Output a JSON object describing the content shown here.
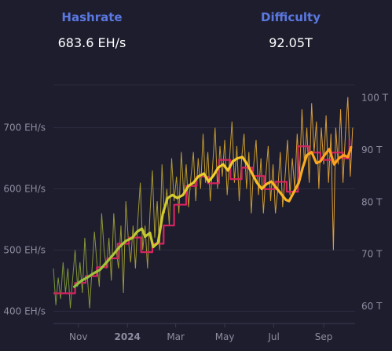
{
  "header": {
    "hashrate_label": "Hashrate",
    "hashrate_value": "683.6 EH/s",
    "difficulty_label": "Difficulty",
    "difficulty_value": "92.05T"
  },
  "chart_data": {
    "type": "line",
    "x_ticks": [
      {
        "label": "Nov",
        "date": "2023-11-01"
      },
      {
        "label": "2024",
        "date": "2024-01-01",
        "bold": true
      },
      {
        "label": "Mar",
        "date": "2024-03-01"
      },
      {
        "label": "May",
        "date": "2024-05-01"
      },
      {
        "label": "Jul",
        "date": "2024-07-01"
      },
      {
        "label": "Sep",
        "date": "2024-09-01"
      }
    ],
    "x_range": [
      "2023-10-01",
      "2024-10-10"
    ],
    "y_left": {
      "unit": "EH/s",
      "ticks": [
        "400 EH/s",
        "500 EH/s",
        "600 EH/s",
        "700 EH/s"
      ],
      "range": [
        380,
        770
      ]
    },
    "y_right": {
      "unit": "T",
      "ticks": [
        "60 T",
        "70 T",
        "80 T",
        "90 T",
        "100 T"
      ],
      "range": [
        56.7,
        102.5
      ]
    },
    "grid": true,
    "series": [
      {
        "axis": "left",
        "style": "daily_hashrate",
        "colors": [
          "#7a9a3a",
          "#c9a02a",
          "#e8a43a"
        ],
        "points": [
          [
            "2023-10-01",
            470
          ],
          [
            "2023-10-04",
            410
          ],
          [
            "2023-10-07",
            455
          ],
          [
            "2023-10-10",
            420
          ],
          [
            "2023-10-13",
            480
          ],
          [
            "2023-10-16",
            430
          ],
          [
            "2023-10-19",
            470
          ],
          [
            "2023-10-22",
            405
          ],
          [
            "2023-10-25",
            455
          ],
          [
            "2023-10-28",
            500
          ],
          [
            "2023-10-31",
            440
          ],
          [
            "2023-11-03",
            480
          ],
          [
            "2023-11-06",
            430
          ],
          [
            "2023-11-09",
            520
          ],
          [
            "2023-11-12",
            460
          ],
          [
            "2023-11-15",
            405
          ],
          [
            "2023-11-18",
            470
          ],
          [
            "2023-11-21",
            530
          ],
          [
            "2023-11-24",
            480
          ],
          [
            "2023-11-27",
            440
          ],
          [
            "2023-11-30",
            560
          ],
          [
            "2023-12-03",
            500
          ],
          [
            "2023-12-06",
            470
          ],
          [
            "2023-12-09",
            520
          ],
          [
            "2023-12-12",
            450
          ],
          [
            "2023-12-15",
            560
          ],
          [
            "2023-12-18",
            500
          ],
          [
            "2023-12-21",
            470
          ],
          [
            "2023-12-24",
            540
          ],
          [
            "2023-12-27",
            430
          ],
          [
            "2023-12-30",
            580
          ],
          [
            "2024-01-02",
            520
          ],
          [
            "2024-01-05",
            480
          ],
          [
            "2024-01-08",
            540
          ],
          [
            "2024-01-11",
            470
          ],
          [
            "2024-01-14",
            550
          ],
          [
            "2024-01-17",
            610
          ],
          [
            "2024-01-20",
            500
          ],
          [
            "2024-01-23",
            540
          ],
          [
            "2024-01-26",
            470
          ],
          [
            "2024-01-29",
            560
          ],
          [
            "2024-02-01",
            630
          ],
          [
            "2024-02-04",
            520
          ],
          [
            "2024-02-07",
            580
          ],
          [
            "2024-02-10",
            500
          ],
          [
            "2024-02-13",
            640
          ],
          [
            "2024-02-16",
            560
          ],
          [
            "2024-02-19",
            600
          ],
          [
            "2024-02-22",
            540
          ],
          [
            "2024-02-25",
            650
          ],
          [
            "2024-02-28",
            580
          ],
          [
            "2024-03-02",
            620
          ],
          [
            "2024-03-05",
            560
          ],
          [
            "2024-03-08",
            660
          ],
          [
            "2024-03-11",
            590
          ],
          [
            "2024-03-14",
            640
          ],
          [
            "2024-03-17",
            570
          ],
          [
            "2024-03-20",
            620
          ],
          [
            "2024-03-23",
            660
          ],
          [
            "2024-03-26",
            580
          ],
          [
            "2024-03-29",
            650
          ],
          [
            "2024-04-01",
            600
          ],
          [
            "2024-04-04",
            690
          ],
          [
            "2024-04-07",
            610
          ],
          [
            "2024-04-10",
            660
          ],
          [
            "2024-04-13",
            580
          ],
          [
            "2024-04-16",
            640
          ],
          [
            "2024-04-19",
            700
          ],
          [
            "2024-04-22",
            600
          ],
          [
            "2024-04-25",
            670
          ],
          [
            "2024-04-28",
            620
          ],
          [
            "2024-05-01",
            680
          ],
          [
            "2024-05-04",
            590
          ],
          [
            "2024-05-07",
            650
          ],
          [
            "2024-05-10",
            710
          ],
          [
            "2024-05-13",
            610
          ],
          [
            "2024-05-16",
            670
          ],
          [
            "2024-05-19",
            580
          ],
          [
            "2024-05-22",
            650
          ],
          [
            "2024-05-25",
            690
          ],
          [
            "2024-05-28",
            600
          ],
          [
            "2024-05-31",
            660
          ],
          [
            "2024-06-03",
            560
          ],
          [
            "2024-06-06",
            640
          ],
          [
            "2024-06-09",
            680
          ],
          [
            "2024-06-12",
            590
          ],
          [
            "2024-06-15",
            650
          ],
          [
            "2024-06-18",
            560
          ],
          [
            "2024-06-21",
            620
          ],
          [
            "2024-06-24",
            670
          ],
          [
            "2024-06-27",
            580
          ],
          [
            "2024-06-30",
            640
          ],
          [
            "2024-07-03",
            560
          ],
          [
            "2024-07-06",
            600
          ],
          [
            "2024-07-09",
            660
          ],
          [
            "2024-07-12",
            570
          ],
          [
            "2024-07-15",
            620
          ],
          [
            "2024-07-18",
            680
          ],
          [
            "2024-07-21",
            590
          ],
          [
            "2024-07-24",
            650
          ],
          [
            "2024-07-27",
            600
          ],
          [
            "2024-07-30",
            690
          ],
          [
            "2024-08-02",
            620
          ],
          [
            "2024-08-05",
            730
          ],
          [
            "2024-08-08",
            640
          ],
          [
            "2024-08-11",
            700
          ],
          [
            "2024-08-14",
            610
          ],
          [
            "2024-08-17",
            740
          ],
          [
            "2024-08-20",
            660
          ],
          [
            "2024-08-23",
            710
          ],
          [
            "2024-08-26",
            600
          ],
          [
            "2024-08-29",
            700
          ],
          [
            "2024-09-01",
            640
          ],
          [
            "2024-09-04",
            720
          ],
          [
            "2024-09-07",
            610
          ],
          [
            "2024-09-10",
            690
          ],
          [
            "2024-09-13",
            500
          ],
          [
            "2024-09-16",
            700
          ],
          [
            "2024-09-19",
            640
          ],
          [
            "2024-09-22",
            730
          ],
          [
            "2024-09-25",
            610
          ],
          [
            "2024-09-28",
            690
          ],
          [
            "2024-10-01",
            750
          ],
          [
            "2024-10-04",
            620
          ],
          [
            "2024-10-07",
            700
          ]
        ]
      },
      {
        "axis": "left",
        "style": "average_hashrate",
        "colors": [
          "#8fc23c",
          "#f2d02a",
          "#ff9a1a"
        ],
        "points": [
          [
            "2023-10-27",
            440
          ],
          [
            "2023-11-05",
            450
          ],
          [
            "2023-11-12",
            455
          ],
          [
            "2023-11-20",
            462
          ],
          [
            "2023-11-28",
            468
          ],
          [
            "2023-12-06",
            480
          ],
          [
            "2023-12-14",
            492
          ],
          [
            "2023-12-22",
            505
          ],
          [
            "2023-12-30",
            515
          ],
          [
            "2024-01-07",
            520
          ],
          [
            "2024-01-13",
            530
          ],
          [
            "2024-01-19",
            535
          ],
          [
            "2024-01-23",
            522
          ],
          [
            "2024-01-29",
            528
          ],
          [
            "2024-02-02",
            505
          ],
          [
            "2024-02-08",
            512
          ],
          [
            "2024-02-14",
            560
          ],
          [
            "2024-02-20",
            585
          ],
          [
            "2024-02-26",
            590
          ],
          [
            "2024-03-03",
            585
          ],
          [
            "2024-03-10",
            590
          ],
          [
            "2024-03-17",
            605
          ],
          [
            "2024-03-23",
            610
          ],
          [
            "2024-03-29",
            620
          ],
          [
            "2024-04-05",
            625
          ],
          [
            "2024-04-11",
            612
          ],
          [
            "2024-04-17",
            622
          ],
          [
            "2024-04-23",
            635
          ],
          [
            "2024-04-29",
            640
          ],
          [
            "2024-05-05",
            630
          ],
          [
            "2024-05-11",
            645
          ],
          [
            "2024-05-17",
            650
          ],
          [
            "2024-05-23",
            652
          ],
          [
            "2024-05-29",
            640
          ],
          [
            "2024-06-04",
            625
          ],
          [
            "2024-06-10",
            610
          ],
          [
            "2024-06-16",
            600
          ],
          [
            "2024-06-22",
            608
          ],
          [
            "2024-06-28",
            612
          ],
          [
            "2024-07-04",
            602
          ],
          [
            "2024-07-10",
            592
          ],
          [
            "2024-07-16",
            582
          ],
          [
            "2024-07-20",
            580
          ],
          [
            "2024-07-26",
            595
          ],
          [
            "2024-08-01",
            610
          ],
          [
            "2024-08-06",
            635
          ],
          [
            "2024-08-11",
            655
          ],
          [
            "2024-08-17",
            660
          ],
          [
            "2024-08-23",
            642
          ],
          [
            "2024-08-28",
            645
          ],
          [
            "2024-09-02",
            655
          ],
          [
            "2024-09-08",
            665
          ],
          [
            "2024-09-14",
            640
          ],
          [
            "2024-09-20",
            650
          ],
          [
            "2024-09-26",
            655
          ],
          [
            "2024-10-01",
            652
          ],
          [
            "2024-10-05",
            668
          ]
        ]
      },
      {
        "axis": "right",
        "style": "difficulty",
        "color": "#d6245f",
        "points": [
          [
            "2023-10-01",
            62.5
          ],
          [
            "2023-10-28",
            62.5
          ],
          [
            "2023-10-28",
            64.5
          ],
          [
            "2023-11-10",
            64.5
          ],
          [
            "2023-11-10",
            65.8
          ],
          [
            "2023-11-24",
            65.8
          ],
          [
            "2023-11-24",
            67.5
          ],
          [
            "2023-12-07",
            67.5
          ],
          [
            "2023-12-07",
            69.2
          ],
          [
            "2023-12-20",
            69.2
          ],
          [
            "2023-12-20",
            72.0
          ],
          [
            "2024-01-03",
            72.0
          ],
          [
            "2024-01-03",
            73.2
          ],
          [
            "2024-01-18",
            73.2
          ],
          [
            "2024-01-18",
            70.4
          ],
          [
            "2024-02-01",
            70.4
          ],
          [
            "2024-02-01",
            72.0
          ],
          [
            "2024-02-15",
            72.0
          ],
          [
            "2024-02-15",
            75.5
          ],
          [
            "2024-02-28",
            75.5
          ],
          [
            "2024-02-28",
            79.5
          ],
          [
            "2024-03-14",
            79.5
          ],
          [
            "2024-03-14",
            83.1
          ],
          [
            "2024-03-27",
            83.1
          ],
          [
            "2024-03-27",
            84.9
          ],
          [
            "2024-04-10",
            84.9
          ],
          [
            "2024-04-10",
            83.6
          ],
          [
            "2024-04-24",
            83.6
          ],
          [
            "2024-04-24",
            88.1
          ],
          [
            "2024-05-08",
            88.1
          ],
          [
            "2024-05-08",
            84.4
          ],
          [
            "2024-05-22",
            84.4
          ],
          [
            "2024-05-22",
            86.6
          ],
          [
            "2024-06-05",
            86.6
          ],
          [
            "2024-06-05",
            85.0
          ],
          [
            "2024-06-19",
            85.0
          ],
          [
            "2024-06-19",
            82.5
          ],
          [
            "2024-07-03",
            82.5
          ],
          [
            "2024-07-03",
            83.9
          ],
          [
            "2024-07-17",
            83.9
          ],
          [
            "2024-07-17",
            82.0
          ],
          [
            "2024-07-31",
            82.0
          ],
          [
            "2024-07-31",
            90.7
          ],
          [
            "2024-08-14",
            90.7
          ],
          [
            "2024-08-14",
            89.5
          ],
          [
            "2024-08-28",
            89.5
          ],
          [
            "2024-08-28",
            88.1
          ],
          [
            "2024-09-11",
            88.1
          ],
          [
            "2024-09-11",
            89.5
          ],
          [
            "2024-09-25",
            89.5
          ],
          [
            "2024-09-25",
            88.4
          ],
          [
            "2024-10-03",
            88.4
          ],
          [
            "2024-10-03",
            92.05
          ]
        ]
      }
    ]
  }
}
